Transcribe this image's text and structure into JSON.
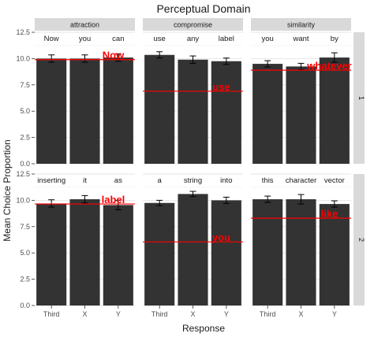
{
  "chart_data": {
    "type": "bar",
    "title": "Perceptual Domain",
    "xlabel": "Response",
    "ylabel": "Mean Choice Proportion",
    "ylim": [
      0,
      12.5
    ],
    "y_ticks": [
      "0.0",
      "2.5",
      "5.0",
      "7.5",
      "10.0",
      "12.5"
    ],
    "y_tick_values": [
      0,
      2.5,
      5,
      7.5,
      10,
      12.5
    ],
    "categories": [
      "Third",
      "X",
      "Y"
    ],
    "columns": [
      "attraction",
      "compromise",
      "similarity"
    ],
    "rows": [
      "1",
      "2"
    ],
    "grid": true,
    "bar_color": "#333333",
    "reference_line_color": "#ff0000",
    "panels": [
      {
        "row": "1",
        "column": "attraction",
        "values": [
          10.0,
          10.0,
          10.1
        ],
        "errors": [
          0.35,
          0.35,
          0.35
        ],
        "bar_labels": [
          "Now",
          "you",
          "can"
        ],
        "reference_value": 9.9,
        "reference_label": "Now"
      },
      {
        "row": "1",
        "column": "compromise",
        "values": [
          10.35,
          9.9,
          9.75
        ],
        "errors": [
          0.3,
          0.35,
          0.3
        ],
        "bar_labels": [
          "use",
          "any",
          "label"
        ],
        "reference_value": 6.9,
        "reference_label": "use"
      },
      {
        "row": "1",
        "column": "similarity",
        "values": [
          9.5,
          9.25,
          10.1
        ],
        "errors": [
          0.3,
          0.3,
          0.45
        ],
        "bar_labels": [
          "you",
          "want",
          "by"
        ],
        "reference_value": 8.9,
        "reference_label": "whatever"
      },
      {
        "row": "2",
        "column": "attraction",
        "values": [
          9.7,
          10.1,
          9.55
        ],
        "errors": [
          0.35,
          0.35,
          0.45
        ],
        "bar_labels": [
          "inserting",
          "it",
          "as"
        ],
        "reference_value": 9.65,
        "reference_label": "label"
      },
      {
        "row": "2",
        "column": "compromise",
        "values": [
          9.75,
          10.6,
          10.0
        ],
        "errors": [
          0.25,
          0.25,
          0.3
        ],
        "bar_labels": [
          "a",
          "string",
          "into"
        ],
        "reference_value": 6.05,
        "reference_label": "you"
      },
      {
        "row": "2",
        "column": "similarity",
        "values": [
          10.1,
          10.1,
          9.65
        ],
        "errors": [
          0.3,
          0.45,
          0.3
        ],
        "bar_labels": [
          "this",
          "character",
          "vector"
        ],
        "reference_value": 8.3,
        "reference_label": "like"
      }
    ]
  }
}
